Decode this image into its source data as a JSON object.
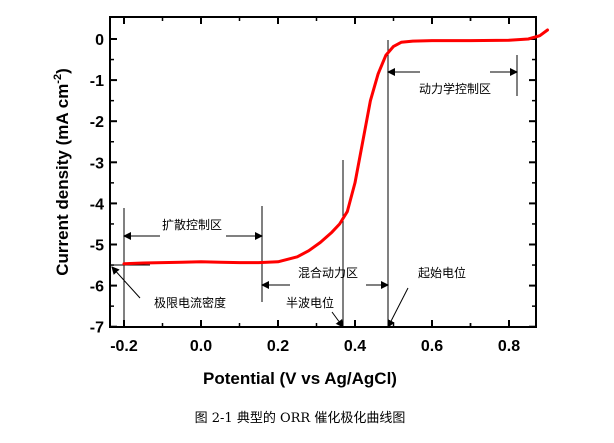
{
  "caption": "图 2-1  典型的 ORR 催化极化曲线图",
  "chart_data": {
    "type": "line",
    "xlabel": "Potential (V vs Ag/AgCl)",
    "ylabel": "Current density (mA cm",
    "ylabel_sup": "-2",
    "ylabel_close": ")",
    "xlim": [
      -0.25,
      0.93
    ],
    "ylim": [
      -7,
      0.35
    ],
    "x_ticks": [
      {
        "v": -0.2,
        "label": "-0.2"
      },
      {
        "v": 0.0,
        "label": "0.0"
      },
      {
        "v": 0.2,
        "label": "0.2"
      },
      {
        "v": 0.4,
        "label": "0.4"
      },
      {
        "v": 0.6,
        "label": "0.6"
      },
      {
        "v": 0.8,
        "label": "0.8"
      }
    ],
    "y_ticks": [
      {
        "v": 0,
        "label": "0"
      },
      {
        "v": -1,
        "label": "-1"
      },
      {
        "v": -2,
        "label": "-2"
      },
      {
        "v": -3,
        "label": "-3"
      },
      {
        "v": -4,
        "label": "-4"
      },
      {
        "v": -5,
        "label": "-5"
      },
      {
        "v": -6,
        "label": "-6"
      },
      {
        "v": -7,
        "label": "-7"
      }
    ],
    "line_color": "#ff0000",
    "series": [
      {
        "x": [
          -0.2,
          -0.15,
          -0.1,
          -0.05,
          0.0,
          0.05,
          0.1,
          0.15,
          0.2,
          0.25,
          0.28,
          0.31,
          0.34,
          0.36,
          0.38,
          0.4,
          0.42,
          0.44,
          0.46,
          0.48,
          0.5,
          0.52,
          0.55,
          0.6,
          0.7,
          0.8,
          0.85,
          0.88,
          0.9
        ],
        "y": [
          -5.47,
          -5.45,
          -5.44,
          -5.43,
          -5.42,
          -5.43,
          -5.44,
          -5.44,
          -5.42,
          -5.3,
          -5.15,
          -4.95,
          -4.7,
          -4.5,
          -4.2,
          -3.5,
          -2.5,
          -1.5,
          -0.85,
          -0.4,
          -0.18,
          -0.08,
          -0.05,
          -0.04,
          -0.04,
          -0.03,
          0.0,
          0.08,
          0.22
        ]
      }
    ],
    "annotations": {
      "kinetic": "动力学控制区",
      "diffusion": "扩散控制区",
      "mixed": "混合动力区",
      "limiting": "极限电流密度",
      "half_wave": "半波电位",
      "onset": "起始电位"
    }
  }
}
